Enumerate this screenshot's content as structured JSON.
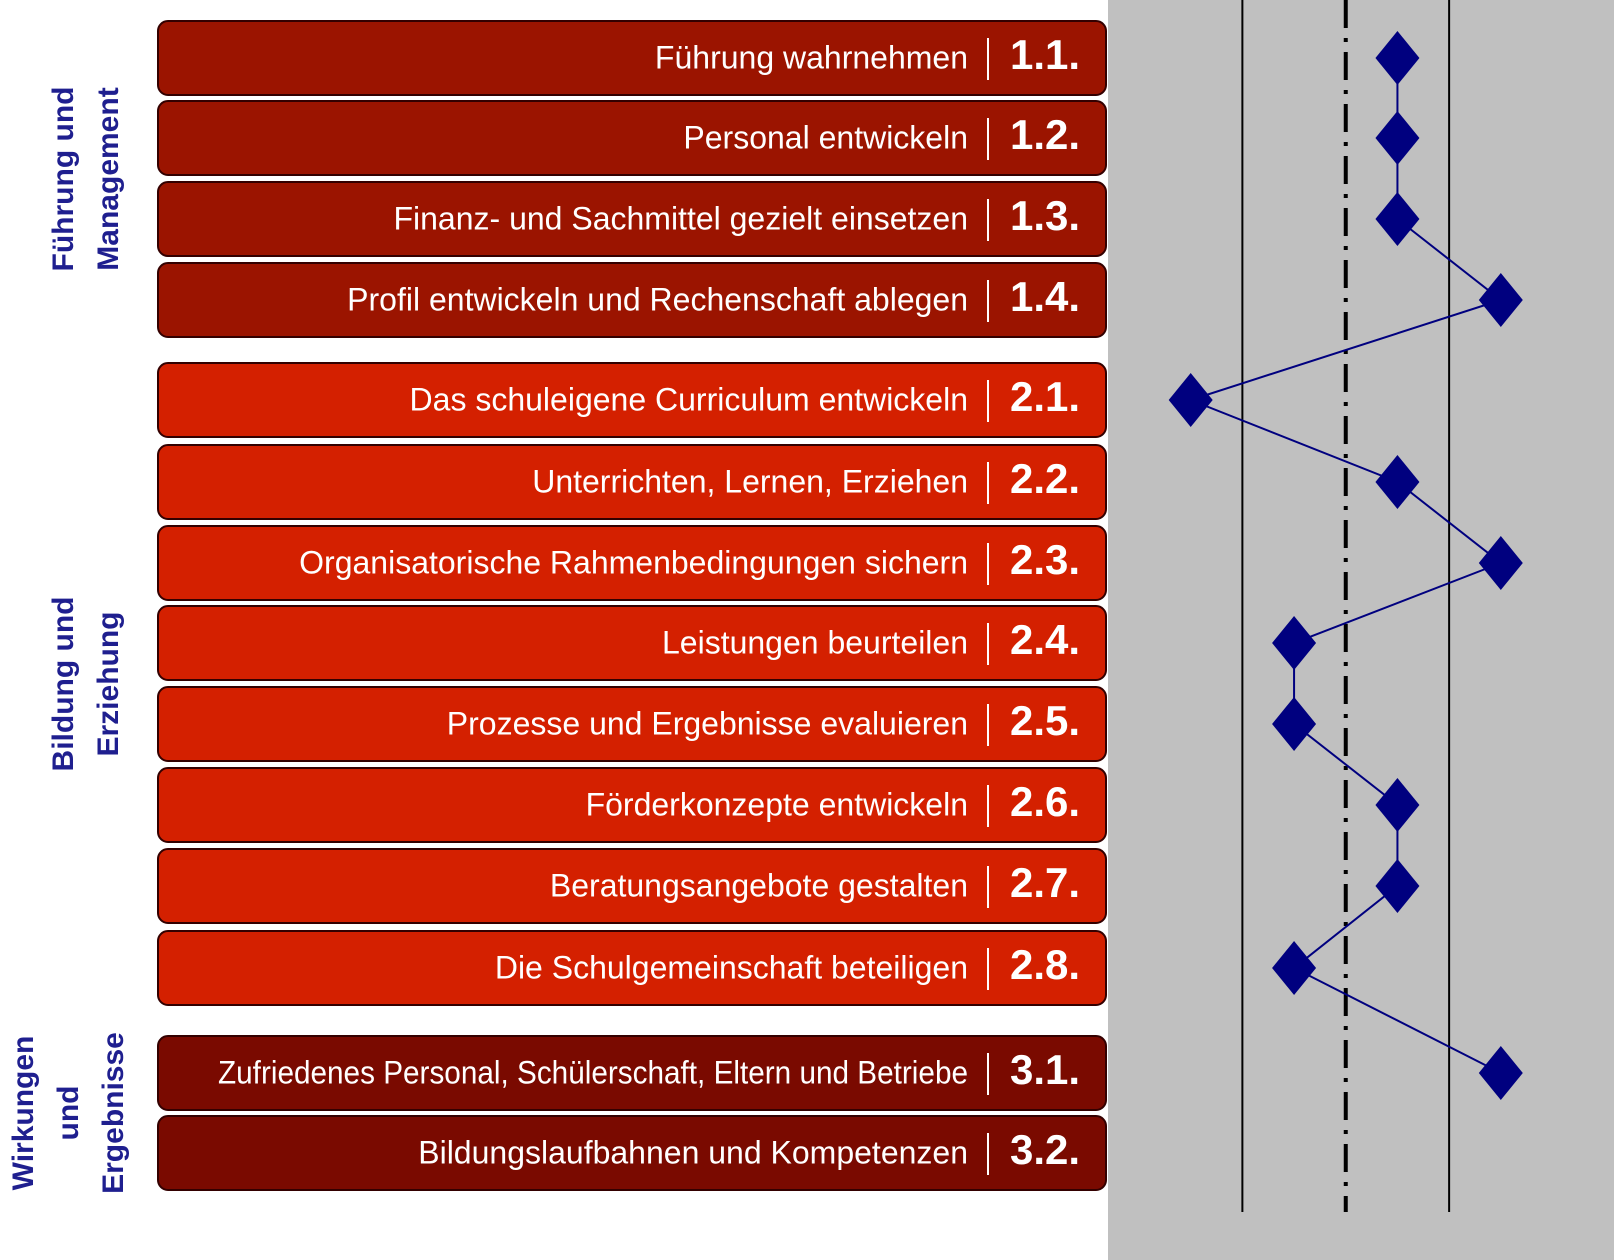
{
  "chart_data": {
    "type": "profile",
    "xlim": [
      0.2,
      4.65
    ],
    "xticks": [
      1.5,
      2.5,
      3.5
    ],
    "reference_line": 2.5,
    "marker_color": "#00007f",
    "groups": [
      {
        "title_lines": [
          "Führung und",
          "Management"
        ],
        "color": "#9b1400",
        "items": [
          {
            "label": "Führung wahrnehmen",
            "number": "1.1.",
            "value": 3
          },
          {
            "label": "Personal entwickeln",
            "number": "1.2.",
            "value": 3
          },
          {
            "label": "Finanz- und Sachmittel gezielt einsetzen",
            "number": "1.3.",
            "value": 3
          },
          {
            "label": "Profil entwickeln und Rechenschaft ablegen",
            "number": "1.4.",
            "value": 4
          }
        ]
      },
      {
        "title_lines": [
          "Bildung und",
          "Erziehung"
        ],
        "color": "#d42000",
        "items": [
          {
            "label": "Das schuleigene Curriculum entwickeln",
            "number": "2.1.",
            "value": 1
          },
          {
            "label": "Unterrichten, Lernen, Erziehen",
            "number": "2.2.",
            "value": 3
          },
          {
            "label": "Organisatorische Rahmenbedingungen sichern",
            "number": "2.3.",
            "value": 4
          },
          {
            "label": "Leistungen beurteilen",
            "number": "2.4.",
            "value": 2
          },
          {
            "label": "Prozesse und Ergebnisse evaluieren",
            "number": "2.5.",
            "value": 2
          },
          {
            "label": "Förderkonzepte entwickeln",
            "number": "2.6.",
            "value": 3
          },
          {
            "label": "Beratungsangebote gestalten",
            "number": "2.7.",
            "value": 3
          },
          {
            "label": "Die Schulgemeinschaft beteiligen",
            "number": "2.8.",
            "value": 2
          }
        ]
      },
      {
        "title_lines": [
          "Wirkungen",
          "und",
          "Ergebnisse"
        ],
        "color": "#7a0a00",
        "items": [
          {
            "label": "Zufriedenes Personal, Schülerschaft, Eltern und Betriebe",
            "number": "3.1.",
            "value": 4
          },
          {
            "label": "Bildungslaufbahnen und Kompetenzen",
            "number": "3.2.",
            "value": null
          }
        ]
      }
    ]
  }
}
